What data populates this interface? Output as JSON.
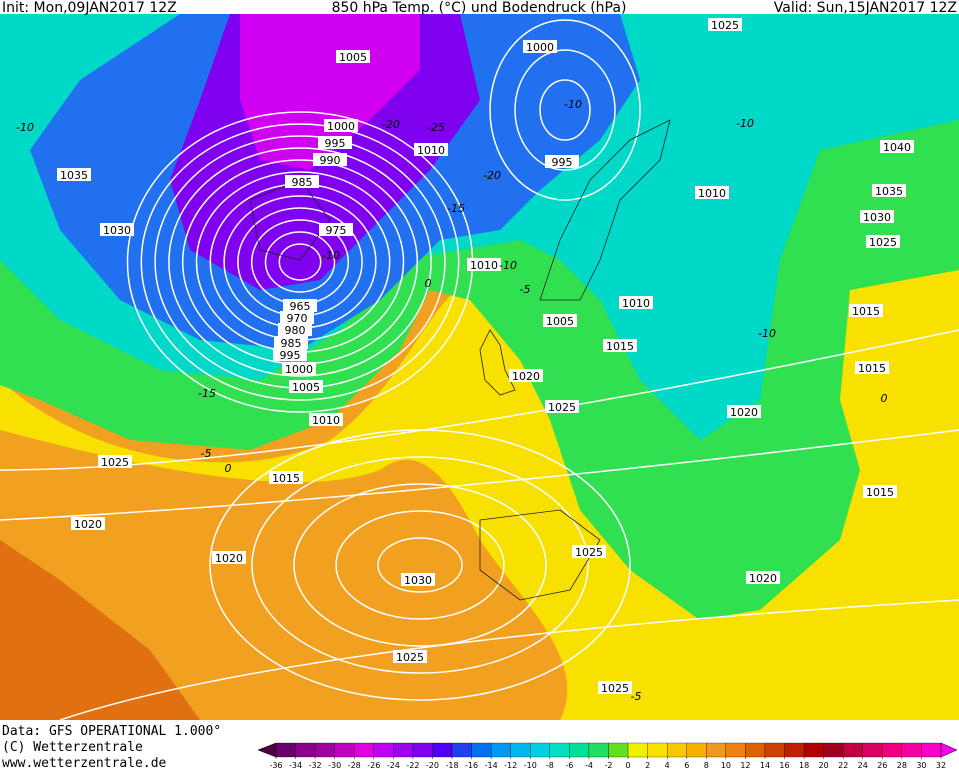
{
  "header": {
    "init": "Init: Mon,09JAN2017 12Z",
    "title": "850 hPa Temp. (°C) und Bodendruck (hPa)",
    "valid": "Valid: Sun,15JAN2017 12Z"
  },
  "isobar_labels": [
    1005,
    1000,
    1025,
    1000,
    995,
    990,
    1010,
    995,
    1035,
    985,
    1010,
    1040,
    1035,
    1030,
    1030,
    975,
    1025,
    1010,
    1010,
    1005,
    1015,
    965,
    970,
    980,
    985,
    995,
    1000,
    1015,
    1015,
    1020,
    1005,
    1025,
    1020,
    1010,
    1025,
    1015,
    1015,
    1020,
    1025,
    1020,
    1020,
    1030,
    1025,
    1025
  ],
  "temperature_labels": [
    -10,
    -10,
    -10,
    -20,
    -25,
    -20,
    -15,
    -10,
    -10,
    -5,
    -10,
    -15,
    -5,
    0,
    0,
    0,
    -5
  ],
  "colorbar": {
    "ticks": [
      -36,
      -34,
      -32,
      -30,
      -28,
      -26,
      -24,
      -22,
      -20,
      -18,
      -16,
      -14,
      -12,
      -10,
      -8,
      -6,
      -4,
      -2,
      0,
      2,
      4,
      6,
      8,
      10,
      12,
      14,
      16,
      18,
      20,
      22,
      24,
      26,
      28,
      30,
      32
    ],
    "colors": [
      "#4b0040",
      "#6a006a",
      "#8a008a",
      "#a000a0",
      "#c000c0",
      "#e000e0",
      "#c000f0",
      "#a000f0",
      "#8000f0",
      "#5000f0",
      "#2040f0",
      "#0070f0",
      "#0098f0",
      "#00b8f0",
      "#00d0e0",
      "#00e0c0",
      "#00e098",
      "#20e060",
      "#60e020",
      "#f0f000",
      "#f8e000",
      "#f8c800",
      "#f8b000",
      "#f09820",
      "#f08010",
      "#e06000",
      "#d04000",
      "#c02000",
      "#b00000",
      "#a00020",
      "#c00040",
      "#d80060",
      "#f00080",
      "#f800a0",
      "#f800c8",
      "#f800f0"
    ]
  },
  "footer": {
    "data": "Data: GFS OPERATIONAL 1.000°",
    "copyright": "(C) Wetterzentrale",
    "url": "www.wetterzentrale.de"
  }
}
